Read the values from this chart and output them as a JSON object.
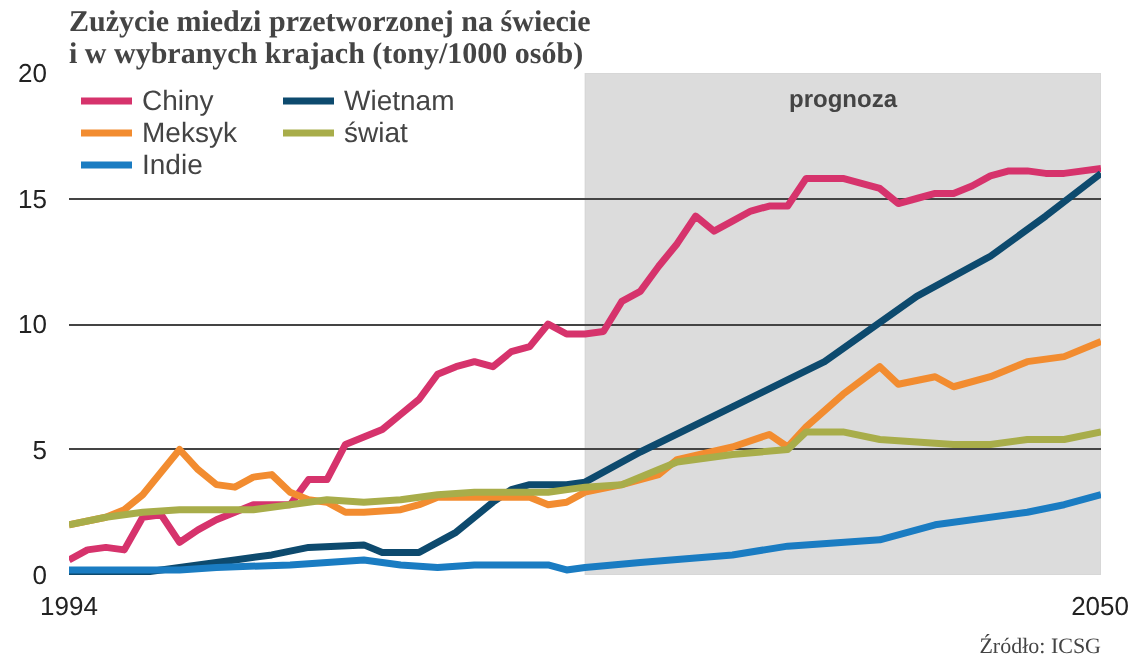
{
  "chart_data": {
    "type": "line",
    "title": "Zużycie miedzi przetworzonej na świecie\ni w wybranych krajach (tony/1000 osób)",
    "annotations": [
      "Źródło: ICSG"
    ],
    "xlim": [
      1994,
      2050
    ],
    "xticks": [
      1994,
      2050
    ],
    "ylim": [
      0,
      20
    ],
    "yticks": [
      0,
      5,
      10,
      15,
      20
    ],
    "grid": "y",
    "legend": "top left",
    "bands": [
      {
        "axis": "x",
        "from": 2022,
        "to": 2050,
        "label": "prognoza",
        "color": "#dcdcdc"
      }
    ],
    "series": [
      {
        "name": "Chiny",
        "color": "#d6336c",
        "x": [
          1994,
          1995,
          1996,
          1997,
          1998,
          1999,
          2000,
          2001,
          2002,
          2003,
          2004,
          2005,
          2006,
          2007,
          2008,
          2009,
          2010,
          2011,
          2012,
          2013,
          2014,
          2015,
          2016,
          2017,
          2018,
          2019,
          2020,
          2021,
          2022,
          2023,
          2024,
          2025,
          2026,
          2027,
          2028,
          2029,
          2030,
          2031,
          2032,
          2033,
          2034,
          2035,
          2036,
          2037,
          2038,
          2039,
          2040,
          2041,
          2042,
          2043,
          2044,
          2045,
          2046,
          2047,
          2048,
          2050
        ],
        "values": [
          0.6,
          1.0,
          1.1,
          1.0,
          2.3,
          2.4,
          1.3,
          1.8,
          2.2,
          2.5,
          2.8,
          2.8,
          2.8,
          3.8,
          3.8,
          5.2,
          5.5,
          5.8,
          6.4,
          7.0,
          8.0,
          8.3,
          8.5,
          8.3,
          8.9,
          9.1,
          10.0,
          9.6,
          9.6,
          9.7,
          10.9,
          11.3,
          12.3,
          13.2,
          14.3,
          13.7,
          14.1,
          14.5,
          14.7,
          14.7,
          15.8,
          15.8,
          15.8,
          15.6,
          15.4,
          14.8,
          15.0,
          15.2,
          15.2,
          15.5,
          15.9,
          16.1,
          16.1,
          16.0,
          16.0,
          16.2
        ]
      },
      {
        "name": "Wietnam",
        "color": "#0d4a6e",
        "x": [
          1994,
          1998,
          2000,
          2003,
          2005,
          2007,
          2010,
          2011,
          2013,
          2015,
          2017,
          2018,
          2019,
          2020,
          2021,
          2022,
          2025,
          2030,
          2035,
          2040,
          2044,
          2047,
          2050
        ],
        "values": [
          0.1,
          0.1,
          0.3,
          0.6,
          0.8,
          1.1,
          1.2,
          0.9,
          0.9,
          1.7,
          2.9,
          3.4,
          3.6,
          3.6,
          3.6,
          3.7,
          4.9,
          6.7,
          8.5,
          11.1,
          12.7,
          14.3,
          16.0
        ]
      },
      {
        "name": "Meksyk",
        "color": "#f28c30",
        "x": [
          1994,
          1996,
          1997,
          1998,
          2000,
          2001,
          2002,
          2003,
          2004,
          2005,
          2006,
          2007,
          2008,
          2009,
          2010,
          2012,
          2013,
          2014,
          2016,
          2018,
          2019,
          2020,
          2021,
          2022,
          2024,
          2026,
          2027,
          2030,
          2032,
          2033,
          2034,
          2036,
          2038,
          2039,
          2041,
          2042,
          2044,
          2046,
          2048,
          2050
        ],
        "values": [
          2.0,
          2.3,
          2.6,
          3.2,
          5.0,
          4.2,
          3.6,
          3.5,
          3.9,
          4.0,
          3.3,
          3.0,
          2.9,
          2.5,
          2.5,
          2.6,
          2.8,
          3.1,
          3.1,
          3.1,
          3.1,
          2.8,
          2.9,
          3.3,
          3.6,
          4.0,
          4.6,
          5.1,
          5.6,
          5.1,
          5.9,
          7.2,
          8.3,
          7.6,
          7.9,
          7.5,
          7.9,
          8.5,
          8.7,
          9.3
        ]
      },
      {
        "name": "świat",
        "color": "#a8ad4a",
        "x": [
          1994,
          1996,
          1998,
          2000,
          2002,
          2004,
          2006,
          2008,
          2010,
          2012,
          2014,
          2016,
          2018,
          2020,
          2022,
          2024,
          2026,
          2027,
          2030,
          2033,
          2034,
          2036,
          2038,
          2040,
          2042,
          2044,
          2046,
          2048,
          2050
        ],
        "values": [
          2.0,
          2.3,
          2.5,
          2.6,
          2.6,
          2.6,
          2.8,
          3.0,
          2.9,
          3.0,
          3.2,
          3.3,
          3.3,
          3.3,
          3.5,
          3.6,
          4.2,
          4.5,
          4.8,
          5.0,
          5.7,
          5.7,
          5.4,
          5.3,
          5.2,
          5.2,
          5.4,
          5.4,
          5.7
        ]
      },
      {
        "name": "Indie",
        "color": "#1a7cc2",
        "x": [
          1994,
          2000,
          2002,
          2006,
          2008,
          2010,
          2012,
          2014,
          2016,
          2018,
          2020,
          2021,
          2022,
          2025,
          2030,
          2033,
          2038,
          2041,
          2046,
          2048,
          2050
        ],
        "values": [
          0.2,
          0.2,
          0.3,
          0.4,
          0.5,
          0.6,
          0.4,
          0.3,
          0.4,
          0.4,
          0.4,
          0.2,
          0.3,
          0.5,
          0.8,
          1.15,
          1.4,
          2.0,
          2.5,
          2.8,
          3.2
        ]
      }
    ]
  }
}
